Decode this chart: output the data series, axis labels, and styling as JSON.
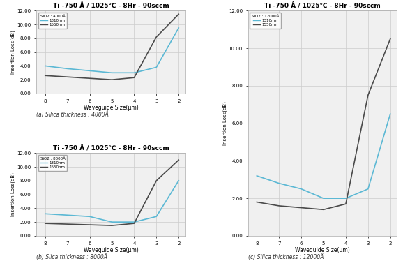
{
  "title": "Ti -750 Å / 1025℃ - 8Hr - 90sccm",
  "xlabel": "Waveguide Size(μm)",
  "ylabel": "Insertion Loss(dB)",
  "x": [
    8,
    7,
    6,
    5,
    4,
    3,
    2
  ],
  "subplots": [
    {
      "label": "SiO2 : 4000Å",
      "caption": "(a) Silica thickness : 4000Å",
      "y_1310": [
        4.0,
        3.6,
        3.3,
        3.0,
        3.0,
        3.8,
        9.5
      ],
      "y_1550": [
        2.6,
        2.4,
        2.2,
        2.0,
        2.3,
        8.2,
        11.5
      ],
      "y1310_color": "#5bb8d4",
      "y1550_color": "#4a4a4a",
      "ylim": [
        0,
        12
      ],
      "yticks": [
        0.0,
        2.0,
        4.0,
        6.0,
        8.0,
        10.0,
        12.0
      ]
    },
    {
      "label": "SiO2 : 8000Å",
      "caption": "(b) Silca thickness : 8000Å",
      "y_1310": [
        3.2,
        3.0,
        2.8,
        2.0,
        2.0,
        2.8,
        8.0
      ],
      "y_1550": [
        1.8,
        1.7,
        1.6,
        1.5,
        1.8,
        8.0,
        11.0
      ],
      "y1310_color": "#5bb8d4",
      "y1550_color": "#4a4a4a",
      "ylim": [
        0,
        12
      ],
      "yticks": [
        0.0,
        2.0,
        4.0,
        6.0,
        8.0,
        10.0,
        12.0
      ]
    },
    {
      "label": "SiO2 : 12000Å",
      "caption": "(c) Silica thickness : 12000Å",
      "y_1310": [
        3.2,
        2.8,
        2.5,
        2.0,
        2.0,
        2.5,
        6.5
      ],
      "y_1550": [
        1.8,
        1.6,
        1.5,
        1.4,
        1.7,
        7.5,
        10.5
      ],
      "y1310_color": "#5bb8d4",
      "y1550_color": "#4a4a4a",
      "ylim": [
        0,
        12
      ],
      "yticks": [
        0.0,
        2.0,
        4.0,
        6.0,
        8.0,
        10.0,
        12.0
      ]
    }
  ],
  "legend_1310": "1310nm",
  "legend_1550": "1550nm",
  "bg_color": "#f0f0f0",
  "grid_color": "#cccccc"
}
